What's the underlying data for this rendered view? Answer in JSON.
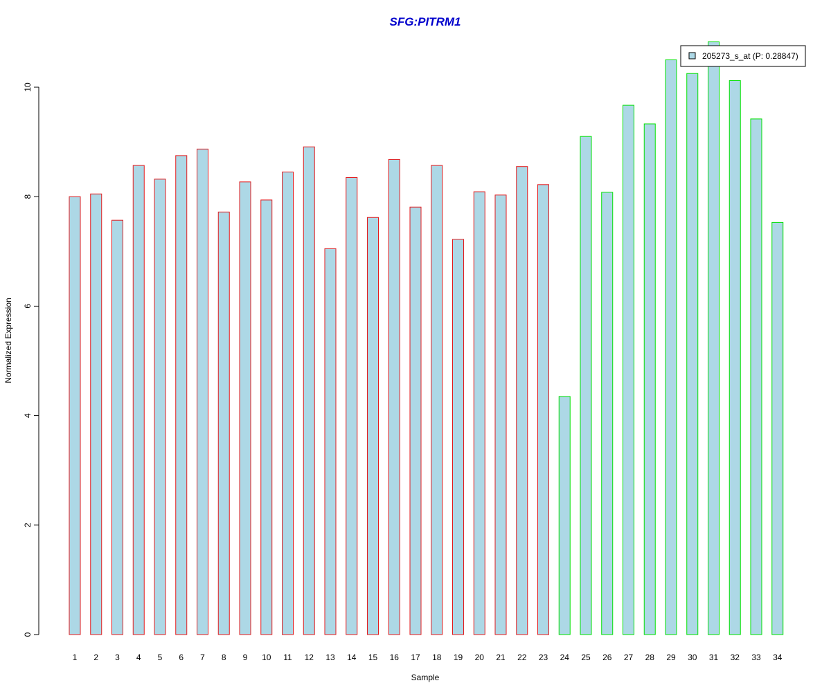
{
  "chart_data": {
    "type": "bar",
    "title": "SFG:PITRM1",
    "xlabel": "Sample",
    "ylabel": "Normalized Expression",
    "ylim": [
      0,
      11
    ],
    "yticks": [
      0,
      2,
      4,
      6,
      8,
      10
    ],
    "grid": false,
    "legend_position": "top-right",
    "categories": [
      "1",
      "2",
      "3",
      "4",
      "5",
      "6",
      "7",
      "8",
      "9",
      "10",
      "11",
      "12",
      "13",
      "14",
      "15",
      "16",
      "17",
      "18",
      "19",
      "20",
      "21",
      "22",
      "23",
      "24",
      "25",
      "26",
      "27",
      "28",
      "29",
      "30",
      "31",
      "32",
      "33",
      "34"
    ],
    "series": [
      {
        "name": "205273_s_at (P: 0.28847)",
        "values": [
          8.0,
          8.05,
          7.57,
          8.57,
          8.32,
          8.75,
          8.87,
          7.72,
          8.27,
          7.94,
          8.45,
          8.91,
          7.05,
          8.35,
          7.62,
          8.68,
          7.81,
          8.57,
          7.22,
          8.09,
          8.03,
          8.55,
          8.22,
          4.35,
          9.1,
          8.08,
          9.67,
          9.33,
          10.5,
          10.25,
          10.83,
          10.12,
          9.42,
          7.53
        ]
      }
    ],
    "bar_fill": "#add8e6",
    "group_colors": {
      "group1": "#e31a1c",
      "group2": "#00e000"
    },
    "group_split_after_index": 22
  },
  "colors": {
    "title": "#0000cc"
  }
}
